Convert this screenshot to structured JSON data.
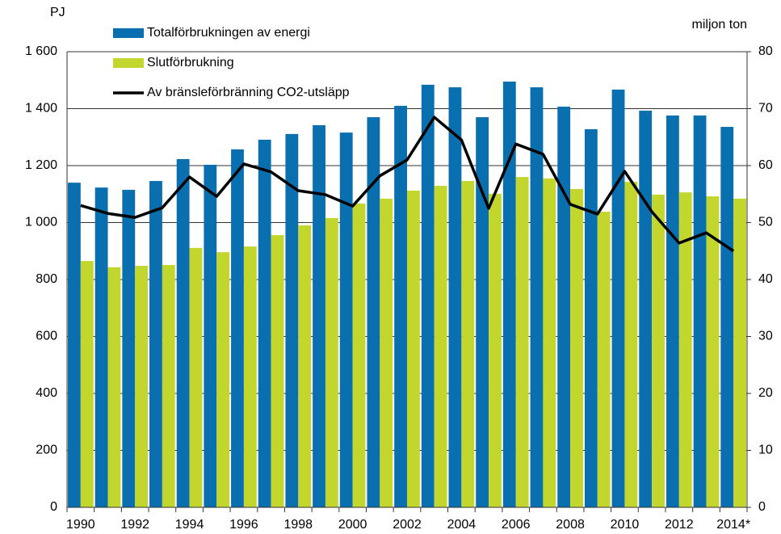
{
  "chart_data": {
    "type": "bar",
    "y_axis_label": "PJ",
    "y2_axis_label": "miljon ton",
    "categories": [
      "1990",
      null,
      "1992",
      null,
      "1994",
      null,
      "1996",
      null,
      "1998",
      null,
      "2000",
      null,
      "2002",
      null,
      "2004",
      null,
      "2006",
      null,
      "2008",
      null,
      "2010",
      null,
      "2012",
      null,
      "2014*"
    ],
    "series": [
      {
        "name": "Totalförbrukningen av energi",
        "type": "bar",
        "color": "#0a6fae",
        "values": [
          1140,
          1123,
          1115,
          1146,
          1223,
          1203,
          1257,
          1291,
          1311,
          1342,
          1316,
          1370,
          1410,
          1484,
          1475,
          1370,
          1495,
          1475,
          1407,
          1328,
          1467,
          1393,
          1376,
          1376,
          1336
        ]
      },
      {
        "name": "Slutförbrukning",
        "type": "bar",
        "color": "#c3d62e",
        "values": [
          865,
          843,
          848,
          851,
          911,
          896,
          916,
          956,
          990,
          1016,
          1067,
          1084,
          1112,
          1129,
          1146,
          1101,
          1160,
          1155,
          1118,
          1038,
          1143,
          1098,
          1106,
          1092,
          1084
        ]
      },
      {
        "name": "Av bränsleförbränning CO2-utsläpp",
        "type": "line",
        "axis": "y2",
        "color": "#000000",
        "values": [
          53.0,
          51.6,
          50.9,
          52.6,
          58.0,
          54.6,
          60.3,
          58.9,
          55.6,
          54.9,
          52.9,
          58.2,
          61.0,
          68.5,
          64.5,
          52.5,
          63.8,
          62.0,
          53.2,
          51.5,
          59.0,
          51.9,
          46.4,
          48.2,
          45.0
        ]
      }
    ],
    "ylim": [
      0,
      1600
    ],
    "yticks": [
      0,
      200,
      400,
      600,
      800,
      {
        "value": 1000,
        "label": "1 000"
      },
      {
        "value": 1200,
        "label": "1 200"
      },
      {
        "value": 1400,
        "label": "1 400"
      },
      {
        "value": 1600,
        "label": "1 600"
      }
    ],
    "y2lim": [
      0,
      80
    ],
    "y2ticks": [
      0,
      10,
      20,
      30,
      40,
      50,
      60,
      70,
      80
    ],
    "grid": true,
    "legend": "upper left"
  }
}
